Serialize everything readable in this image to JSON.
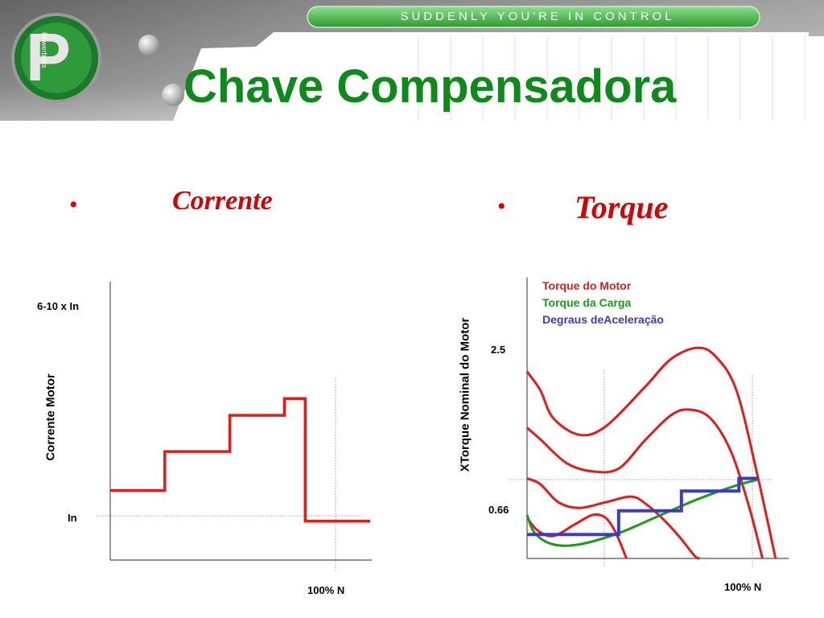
{
  "header": {
    "slogan": "SUDDENLY YOU'RE IN CONTROL",
    "logo_text": "Powerboss",
    "title": "Chave Compensadora"
  },
  "colors": {
    "title": "#0d8a1a",
    "red": "#e41b1b",
    "green": "#1a9a1a",
    "blue": "#3a3ac8"
  },
  "bullets": [
    {
      "dot": "•",
      "label": "Corrente"
    },
    {
      "dot": "•",
      "label": "Torque"
    }
  ],
  "chart_data": [
    {
      "type": "line",
      "ylabel": "Corrente Motor",
      "y_ticks": [
        "6-10 x In",
        "In"
      ],
      "x_ticks": [
        "100% N"
      ],
      "grid": "dotted reference lines at In and 100% N",
      "series": [
        {
          "points": [
            [
              0,
              0.25
            ],
            [
              0.21,
              0.25
            ],
            [
              0.21,
              0.39
            ],
            [
              0.46,
              0.39
            ],
            [
              0.46,
              0.52
            ],
            [
              0.67,
              0.52
            ],
            [
              0.67,
              0.58
            ],
            [
              0.75,
              0.58
            ],
            [
              0.75,
              0.14
            ],
            [
              1.0,
              0.14
            ]
          ]
        }
      ]
    },
    {
      "type": "line",
      "ylabel": "XTorque Nominal do Motor",
      "y_ticks": [
        "2.5",
        "0.66"
      ],
      "x_ticks": [
        "100% N"
      ],
      "legend_position": "top-left",
      "series": [
        {
          "name": "Torque do Motor",
          "color": "red",
          "curves": [
            [
              [
                0,
                0.665
              ],
              [
                0.05,
                0.6
              ],
              [
                0.1,
                0.5
              ],
              [
                0.2,
                0.44
              ],
              [
                0.3,
                0.47
              ],
              [
                0.45,
                0.61
              ],
              [
                0.55,
                0.71
              ],
              [
                0.65,
                0.75
              ],
              [
                0.72,
                0.72
              ],
              [
                0.8,
                0.6
              ],
              [
                0.88,
                0.3
              ],
              [
                0.95,
                0.0
              ]
            ],
            [
              [
                0,
                0.465
              ],
              [
                0.05,
                0.425
              ],
              [
                0.15,
                0.34
              ],
              [
                0.25,
                0.31
              ],
              [
                0.35,
                0.32
              ],
              [
                0.45,
                0.42
              ],
              [
                0.55,
                0.51
              ],
              [
                0.62,
                0.53
              ],
              [
                0.7,
                0.5
              ],
              [
                0.78,
                0.38
              ],
              [
                0.85,
                0.18
              ],
              [
                0.9,
                0.0
              ]
            ],
            [
              [
                0,
                0.285
              ],
              [
                0.05,
                0.265
              ],
              [
                0.12,
                0.2
              ],
              [
                0.2,
                0.18
              ],
              [
                0.3,
                0.2
              ],
              [
                0.4,
                0.22
              ],
              [
                0.46,
                0.19
              ],
              [
                0.52,
                0.14
              ],
              [
                0.58,
                0.08
              ],
              [
                0.64,
                0.01
              ],
              [
                0.66,
                0.0
              ]
            ],
            [
              [
                0,
                0.145
              ],
              [
                0.04,
                0.1
              ],
              [
                0.1,
                0.08
              ],
              [
                0.18,
                0.12
              ],
              [
                0.25,
                0.155
              ],
              [
                0.3,
                0.145
              ],
              [
                0.34,
                0.09
              ],
              [
                0.38,
                0.0
              ]
            ]
          ]
        },
        {
          "name": "Torque da Carga",
          "color": "green",
          "curves": [
            [
              [
                0,
                0.155
              ],
              [
                0.03,
                0.09
              ],
              [
                0.1,
                0.05
              ],
              [
                0.2,
                0.05
              ],
              [
                0.35,
                0.09
              ],
              [
                0.5,
                0.15
              ],
              [
                0.65,
                0.21
              ],
              [
                0.8,
                0.26
              ],
              [
                0.88,
                0.28
              ]
            ]
          ]
        },
        {
          "name": "Degraus deAceleração",
          "color": "blue",
          "curves": [
            [
              [
                0,
                0.085
              ],
              [
                0.35,
                0.085
              ],
              [
                0.35,
                0.17
              ],
              [
                0.59,
                0.17
              ],
              [
                0.59,
                0.24
              ],
              [
                0.81,
                0.24
              ],
              [
                0.81,
                0.285
              ],
              [
                0.88,
                0.285
              ]
            ]
          ]
        }
      ]
    }
  ]
}
